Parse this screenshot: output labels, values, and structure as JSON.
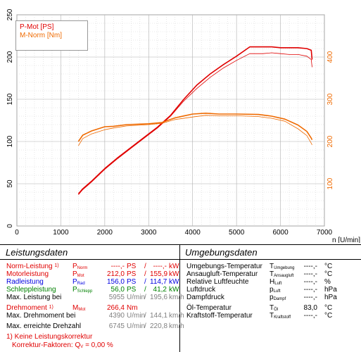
{
  "chart_data": {
    "type": "line",
    "xlabel": "n [U/min]",
    "xlim": [
      0,
      7000
    ],
    "xticks": [
      0,
      1000,
      2000,
      3000,
      4000,
      5000,
      6000,
      7000
    ],
    "ylim_left": [
      0,
      250
    ],
    "yticks_left": [
      0,
      50,
      100,
      150,
      200,
      250
    ],
    "ylim_right": [
      0,
      500
    ],
    "yticks_right": [
      100,
      200,
      300,
      400
    ],
    "grid": true,
    "legend_position": "top-left",
    "series": [
      {
        "name": "P-Mot [PS]",
        "axis": "left",
        "color": "#e00000",
        "x": [
          1400,
          1500,
          1700,
          2000,
          2300,
          2600,
          2900,
          3200,
          3500,
          3800,
          4100,
          4400,
          4700,
          5000,
          5300,
          5600,
          5800,
          6000,
          6200,
          6400,
          6600,
          6700,
          6720
        ],
        "y": [
          38,
          44,
          53,
          68,
          81,
          93,
          105,
          117,
          131,
          150,
          167,
          180,
          191,
          201,
          212,
          212,
          212,
          211,
          211,
          211,
          210,
          208,
          197
        ]
      },
      {
        "name": "P-Mot [PS] (2)",
        "axis": "left",
        "color": "#e00000",
        "width": 0.8,
        "x": [
          1400,
          1500,
          1700,
          2000,
          2300,
          2600,
          2900,
          3200,
          3500,
          3800,
          4100,
          4400,
          4700,
          5000,
          5300,
          5600,
          5800,
          6000,
          6200,
          6400,
          6600,
          6700,
          6720
        ],
        "y": [
          37,
          43,
          52,
          67,
          80,
          92,
          104,
          116,
          130,
          148,
          163,
          176,
          187,
          196,
          204,
          204,
          205,
          204,
          203,
          203,
          201,
          197,
          188
        ]
      },
      {
        "name": "M-Norm [Nm]",
        "axis": "right",
        "color": "#ef6a00",
        "x": [
          1400,
          1500,
          1700,
          2000,
          2200,
          2500,
          3000,
          3300,
          3600,
          4000,
          4300,
          4600,
          5000,
          5500,
          5800,
          6100,
          6400,
          6600,
          6700,
          6720
        ],
        "y": [
          200,
          215,
          225,
          235,
          236,
          240,
          242,
          245,
          256,
          265,
          267,
          265,
          265,
          264,
          260,
          253,
          239,
          224,
          208,
          204
        ]
      },
      {
        "name": "M-Norm [Nm] (2)",
        "axis": "right",
        "color": "#ef6a00",
        "width": 0.8,
        "x": [
          1400,
          1500,
          1700,
          2000,
          2200,
          2500,
          3000,
          3300,
          3600,
          4000,
          4300,
          4600,
          5000,
          5500,
          5800,
          6100,
          6400,
          6600,
          6700,
          6720
        ],
        "y": [
          190,
          207,
          218,
          228,
          232,
          237,
          240,
          243,
          252,
          258,
          262,
          261,
          261,
          259,
          255,
          248,
          230,
          214,
          196,
          192
        ]
      }
    ]
  },
  "legend": {
    "pmot": "P-Mot [PS]",
    "mnorm": "M-Norm [Nm]"
  },
  "leistung": {
    "title": "Leistungsdaten",
    "rows": [
      {
        "label": "Norm-Leistung",
        "note": "1)",
        "sym": "P",
        "sub": "Norm",
        "v1": "----,-",
        "u1": "PS",
        "sep": "/",
        "v2": "----,-",
        "u2": "kW"
      },
      {
        "label": "Motorleistung",
        "note": "",
        "sym": "P",
        "sub": "Mot",
        "v1": "212,0",
        "u1": "PS",
        "sep": "/",
        "v2": "155,9",
        "u2": "kW"
      },
      {
        "label": "Radleistung",
        "note": "",
        "sym": "P",
        "sub": "Rad",
        "v1": "156,0",
        "u1": "PS",
        "sep": "/",
        "v2": "114,7",
        "u2": "kW"
      },
      {
        "label": "Schleppleistung",
        "note": "",
        "sym": "P",
        "sub": "Schlepp",
        "v1": "56,0",
        "u1": "PS",
        "sep": "/",
        "v2": "41,2",
        "u2": "kW"
      },
      {
        "label": "Max. Leistung bei",
        "note": "",
        "sym": "",
        "sub": "",
        "v1": "5955",
        "u1": "U/min",
        "sep": "/",
        "v2": "195,6",
        "u2": "km/h"
      },
      {
        "label": "Drehmoment",
        "note": "1)",
        "sym": "M",
        "sub": "Mot",
        "v1": "266,4",
        "u1": "Nm",
        "sep": "",
        "v2": "",
        "u2": ""
      },
      {
        "label": "Max. Drehmoment bei",
        "note": "",
        "sym": "",
        "sub": "",
        "v1": "4390",
        "u1": "U/min",
        "sep": "/",
        "v2": "144,1",
        "u2": "km/h"
      },
      {
        "label": "Max. erreichte Drehzahl",
        "note": "",
        "sym": "",
        "sub": "",
        "v1": "6745",
        "u1": "U/min",
        "sep": "/",
        "v2": "220,8",
        "u2": "km/h"
      }
    ],
    "footnote1": "1) Keine Leistungskorrektur",
    "footnote2": "Korrektur-Faktoren: Q",
    "footnote2_sub": "V",
    "footnote2_val": "=   0,00 %"
  },
  "umgebung": {
    "title": "Umgebungsdaten",
    "rows": [
      {
        "label": "Umgebungs-Temperatur",
        "sym": "T",
        "sub": "Umgebung",
        "val": "----,-",
        "unit": "°C"
      },
      {
        "label": "Ansaugluft-Temperatur",
        "sym": "T",
        "sub": "Ansaugluft",
        "val": "----,-",
        "unit": "°C"
      },
      {
        "label": "Relative Luftfeuchte",
        "sym": "H",
        "sub": "Luft",
        "val": "----,-",
        "unit": "%"
      },
      {
        "label": "Luftdruck",
        "sym": "p",
        "sub": "Luft",
        "val": "----,-",
        "unit": "hPa"
      },
      {
        "label": "Dampfdruck",
        "sym": "p",
        "sub": "Dampf",
        "val": "----,-",
        "unit": "hPa"
      },
      {
        "label": "Öl-Temperatur",
        "sym": "T",
        "sub": "Öl",
        "val": "83,0",
        "unit": "°C"
      },
      {
        "label": "Kraftstoff-Temperatur",
        "sym": "T",
        "sub": "Kraftstoff",
        "val": "----,-",
        "unit": "°C"
      }
    ]
  },
  "colors": {
    "red": "#e00000",
    "orange": "#ef6a00",
    "blue": "#0000e0",
    "green": "#008000",
    "gray": "#808080",
    "axis_orange": "#ef6a00"
  }
}
